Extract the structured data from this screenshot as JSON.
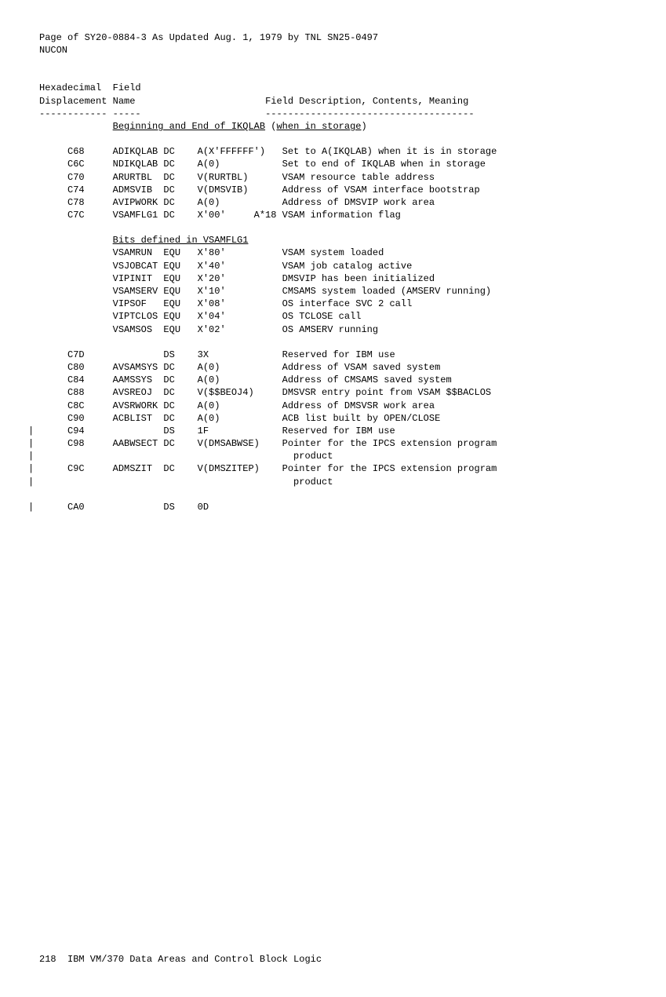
{
  "header": {
    "line1": "Page of SY20-0884-3 As Updated Aug. 1, 1979 by TNL SN25-0497",
    "line2": "NUCON"
  },
  "columnHeaders": {
    "col1a": "Hexadecimal",
    "col1b": "Displacement",
    "col2a": "Field",
    "col2b": "Name",
    "col3": "Field Description, Contents, Meaning",
    "dash1": "------------",
    "dash2": "-----",
    "dash3": "-------------------------------------"
  },
  "sections": {
    "s1": {
      "title_pre": "Beginning and End of IKQLAB",
      "title_post": " (",
      "title_mid": "when in storage",
      "title_end": ")"
    },
    "s2": {
      "title": "Bits defined in VSAMFLG1"
    }
  },
  "rows": [
    {
      "disp": "C68",
      "name": "ADIKQLAB",
      "op": "DC",
      "val": "A(X'FFFFFF')",
      "desc": "Set to A(IKQLAB) when it is in storage"
    },
    {
      "disp": "C6C",
      "name": "NDIKQLAB",
      "op": "DC",
      "val": "A(0)",
      "desc": "Set to end of IKQLAB when in storage"
    },
    {
      "disp": "C70",
      "name": "ARURTBL",
      "op": "DC",
      "val": "V(RURTBL)",
      "desc": "VSAM resource table address"
    },
    {
      "disp": "C74",
      "name": "ADMSVIB",
      "op": "DC",
      "val": "V(DMSVIB)",
      "desc": "Address of VSAM interface bootstrap"
    },
    {
      "disp": "C78",
      "name": "AVIPWORK",
      "op": "DC",
      "val": "A(0)",
      "desc": "Address of DMSVIP work area"
    },
    {
      "disp": "C7C",
      "name": "VSAMFLG1",
      "op": "DC",
      "val": "X'00'",
      "extra": "A*18",
      "desc": "VSAM information flag"
    }
  ],
  "bitrows": [
    {
      "name": "VSAMRUN",
      "op": "EQU",
      "val": "X'80'",
      "desc": "VSAM system loaded"
    },
    {
      "name": "VSJOBCAT",
      "op": "EQU",
      "val": "X'40'",
      "desc": "VSAM job catalog active"
    },
    {
      "name": "VIPINIT",
      "op": "EQU",
      "val": "X'20'",
      "desc": "DMSVIP has been initialized"
    },
    {
      "name": "VSAMSERV",
      "op": "EQU",
      "val": "X'10'",
      "desc": "CMSAMS system loaded (AMSERV running)"
    },
    {
      "name": "VIPSOF",
      "op": "EQU",
      "val": "X'08'",
      "desc": "OS interface SVC 2 call"
    },
    {
      "name": "VIPTCLOS",
      "op": "EQU",
      "val": "X'04'",
      "desc": "OS TCLOSE call"
    },
    {
      "name": "VSAMSOS",
      "op": "EQU",
      "val": "X'02'",
      "desc": "OS AMSERV running"
    }
  ],
  "rows3": [
    {
      "disp": "C7D",
      "name": "",
      "op": "DS",
      "val": "3X",
      "desc": "Reserved for IBM use"
    },
    {
      "disp": "C80",
      "name": "AVSAMSYS",
      "op": "DC",
      "val": "A(0)",
      "desc": "Address of VSAM saved system"
    },
    {
      "disp": "C84",
      "name": "AAMSSYS",
      "op": "DC",
      "val": "A(0)",
      "desc": "Address of CMSAMS saved system"
    },
    {
      "disp": "C88",
      "name": "AVSREOJ",
      "op": "DC",
      "val": "V($$BEOJ4)",
      "desc": "DMSVSR entry point from VSAM $$BACLOS"
    },
    {
      "disp": "C8C",
      "name": "AVSRWORK",
      "op": "DC",
      "val": "A(0)",
      "desc": "Address of DMSVSR work area"
    },
    {
      "disp": "C90",
      "name": "ACBLIST",
      "op": "DC",
      "val": "A(0)",
      "desc": "ACB list built by OPEN/CLOSE"
    },
    {
      "disp": "C94",
      "name": "",
      "op": "DS",
      "val": "1F",
      "desc": "Reserved for IBM use",
      "cb": true
    },
    {
      "disp": "C98",
      "name": "AABWSECT",
      "op": "DC",
      "val": "V(DMSABWSE)",
      "desc": "Pointer for the IPCS extension program",
      "cb": true
    },
    {
      "disp": "",
      "name": "",
      "op": "",
      "val": "",
      "desc": "  product",
      "cb": true
    },
    {
      "disp": "C9C",
      "name": "ADMSZIT",
      "op": "DC",
      "val": "V(DMSZITEP)",
      "desc": "Pointer for the IPCS extension program",
      "cb": true
    },
    {
      "disp": "",
      "name": "",
      "op": "",
      "val": "",
      "desc": "  product",
      "cb": true
    }
  ],
  "lastrow": {
    "disp": "CA0",
    "name": "",
    "op": "DS",
    "val": "0D",
    "desc": "",
    "cb": true
  },
  "footer": "218  IBM VM/370 Data Areas and Control Block Logic"
}
